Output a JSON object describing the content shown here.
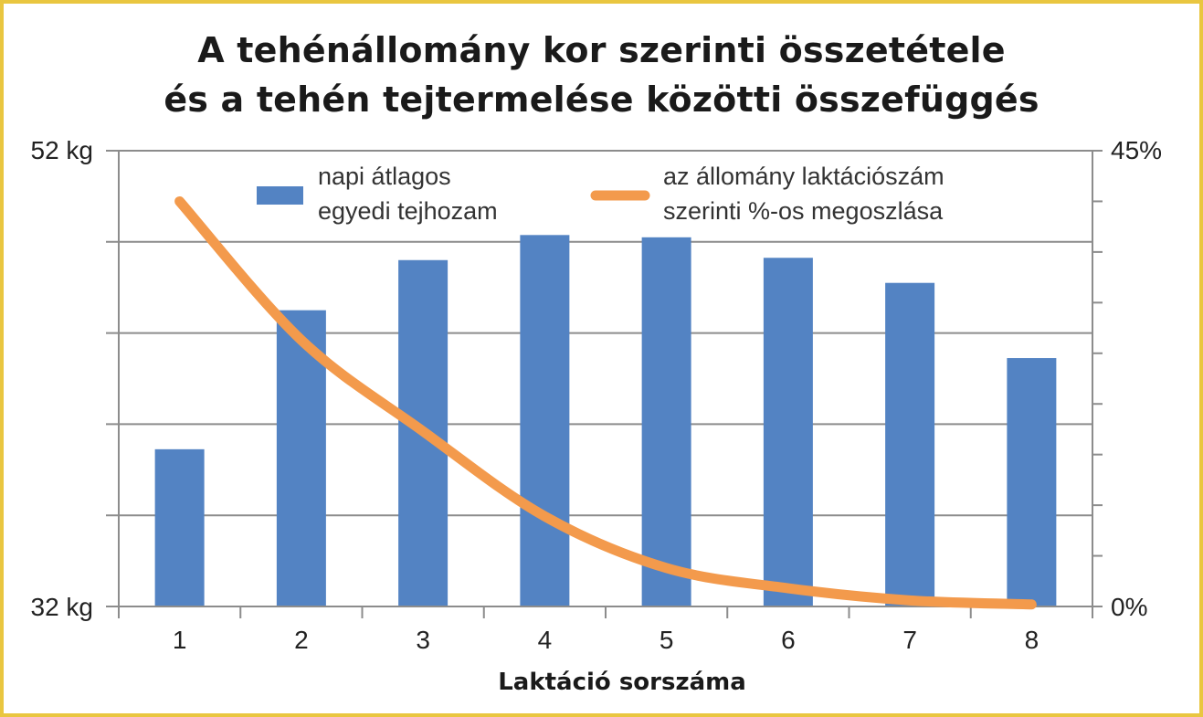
{
  "chart_data": {
    "type": "bar",
    "title": [
      "A tehénállomány kor szerinti összetétele",
      "és a tehén tejtermelése közötti összefüggés"
    ],
    "xlabel": "Laktáció sorszáma",
    "categories": [
      "1",
      "2",
      "3",
      "4",
      "5",
      "6",
      "7",
      "8"
    ],
    "y_left": {
      "range": [
        32,
        52
      ],
      "tick_labels": [
        "52 kg",
        "32 kg"
      ],
      "gridlines": 5
    },
    "y_right": {
      "range": [
        0,
        45
      ],
      "tick_labels": [
        "45%",
        "0%"
      ]
    },
    "series": [
      {
        "name": "napi átlagos egyedi tejhozam",
        "legend_lines": [
          "napi átlagos",
          "egyedi tejhozam"
        ],
        "type": "bar",
        "axis": "left",
        "color": "#5383c3",
        "values": [
          38.9,
          45.0,
          47.2,
          48.3,
          48.2,
          47.3,
          46.2,
          42.9
        ]
      },
      {
        "name": "az állomány laktációszám szerinti %-os megoszlása",
        "legend_lines": [
          "az állomány laktációszám",
          "szerinti %-os megoszlása"
        ],
        "type": "line",
        "axis": "right",
        "color": "#f39a4c",
        "values": [
          40.0,
          26.3,
          17.3,
          8.9,
          3.8,
          1.8,
          0.6,
          0.2
        ]
      }
    ],
    "legend_position": "top",
    "grid": true
  }
}
